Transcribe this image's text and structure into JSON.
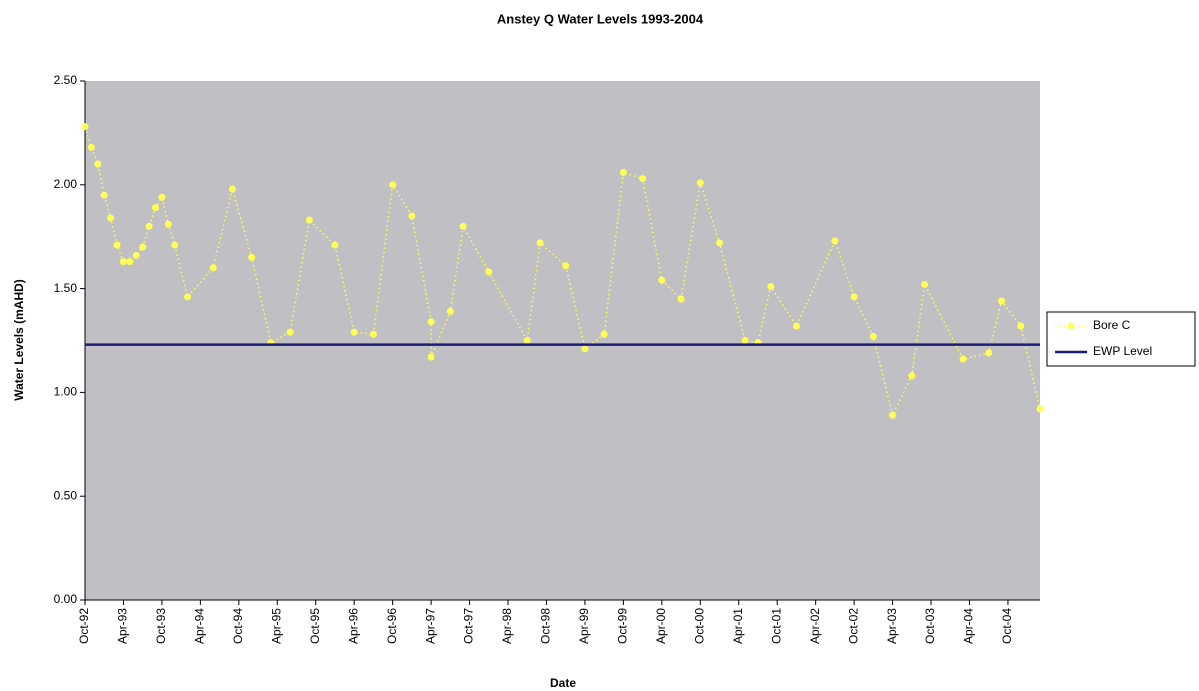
{
  "chart_data": {
    "type": "line",
    "title": "Anstey Q Water Levels 1993-2004",
    "x_label": "Date",
    "y_label": "Water Levels (mAHD)",
    "xlim": [
      "1992-10",
      "2005-03"
    ],
    "xticks": [
      {
        "value": "1992-10",
        "label": "Oct-92"
      },
      {
        "value": "1993-04",
        "label": "Apr-93"
      },
      {
        "value": "1993-10",
        "label": "Oct-93"
      },
      {
        "value": "1994-04",
        "label": "Apr-94"
      },
      {
        "value": "1994-10",
        "label": "Oct-94"
      },
      {
        "value": "1995-04",
        "label": "Apr-95"
      },
      {
        "value": "1995-10",
        "label": "Oct-95"
      },
      {
        "value": "1996-04",
        "label": "Apr-96"
      },
      {
        "value": "1996-10",
        "label": "Oct-96"
      },
      {
        "value": "1997-04",
        "label": "Apr-97"
      },
      {
        "value": "1997-10",
        "label": "Oct-97"
      },
      {
        "value": "1998-04",
        "label": "Apr-98"
      },
      {
        "value": "1998-10",
        "label": "Oct-98"
      },
      {
        "value": "1999-04",
        "label": "Apr-99"
      },
      {
        "value": "1999-10",
        "label": "Oct-99"
      },
      {
        "value": "2000-04",
        "label": "Apr-00"
      },
      {
        "value": "2000-10",
        "label": "Oct-00"
      },
      {
        "value": "2001-04",
        "label": "Apr-01"
      },
      {
        "value": "2001-10",
        "label": "Oct-01"
      },
      {
        "value": "2002-04",
        "label": "Apr-02"
      },
      {
        "value": "2002-10",
        "label": "Oct-02"
      },
      {
        "value": "2003-04",
        "label": "Apr-03"
      },
      {
        "value": "2003-10",
        "label": "Oct-03"
      },
      {
        "value": "2004-04",
        "label": "Apr-04"
      },
      {
        "value": "2004-10",
        "label": "Oct-04"
      }
    ],
    "ylim": [
      0,
      2.5
    ],
    "yticks": [
      {
        "value": 0,
        "label": "0.00"
      },
      {
        "value": 0.5,
        "label": "0.50"
      },
      {
        "value": 1,
        "label": "1.00"
      },
      {
        "value": 1.5,
        "label": "1.50"
      },
      {
        "value": 2,
        "label": "2.00"
      },
      {
        "value": 2.5,
        "label": "2.50"
      }
    ],
    "legend": "right",
    "plot_background": "#c0c0c4",
    "series": [
      {
        "name": "Bore C",
        "color": "#ffff55",
        "markers": true,
        "dotted": true,
        "x": [
          "1992-10",
          "1992-11",
          "1992-12",
          "1993-01",
          "1993-02",
          "1993-03",
          "1993-04",
          "1993-05",
          "1993-06",
          "1993-07",
          "1993-08",
          "1993-09",
          "1993-10",
          "1993-11",
          "1993-12",
          "1994-02",
          "1994-06",
          "1994-09",
          "1994-12",
          "1995-03",
          "1995-06",
          "1995-09",
          "1996-01",
          "1996-04",
          "1996-07",
          "1996-10",
          "1997-01",
          "1997-04",
          "1997-04",
          "1997-07",
          "1997-09",
          "1998-01",
          "1998-07",
          "1998-09",
          "1999-01",
          "1999-04",
          "1999-07",
          "1999-10",
          "2000-01",
          "2000-04",
          "2000-07",
          "2000-10",
          "2001-01",
          "2001-05",
          "2001-07",
          "2001-09",
          "2002-01",
          "2002-07",
          "2002-10",
          "2003-01",
          "2003-04",
          "2003-07",
          "2003-09",
          "2004-03",
          "2004-07",
          "2004-09",
          "2004-12",
          "2005-03"
        ],
        "values": [
          2.28,
          2.18,
          2.1,
          1.95,
          1.84,
          1.71,
          1.63,
          1.63,
          1.66,
          1.7,
          1.8,
          1.89,
          1.94,
          1.81,
          1.71,
          1.46,
          1.6,
          1.98,
          1.65,
          1.24,
          1.29,
          1.83,
          1.71,
          1.29,
          1.28,
          2.0,
          1.85,
          1.34,
          1.17,
          1.39,
          1.8,
          1.58,
          1.25,
          1.72,
          1.61,
          1.21,
          1.28,
          2.06,
          2.03,
          1.54,
          1.45,
          2.01,
          1.72,
          1.25,
          1.24,
          1.51,
          1.32,
          1.73,
          1.46,
          1.27,
          0.89,
          1.08,
          1.52,
          1.16,
          1.19,
          1.44,
          1.32,
          0.92
        ]
      },
      {
        "name": "EWP Level",
        "color": "#1c1c78",
        "markers": false,
        "dotted": false,
        "x": [
          "1992-10",
          "2005-03"
        ],
        "values": [
          1.23,
          1.23
        ]
      }
    ]
  }
}
